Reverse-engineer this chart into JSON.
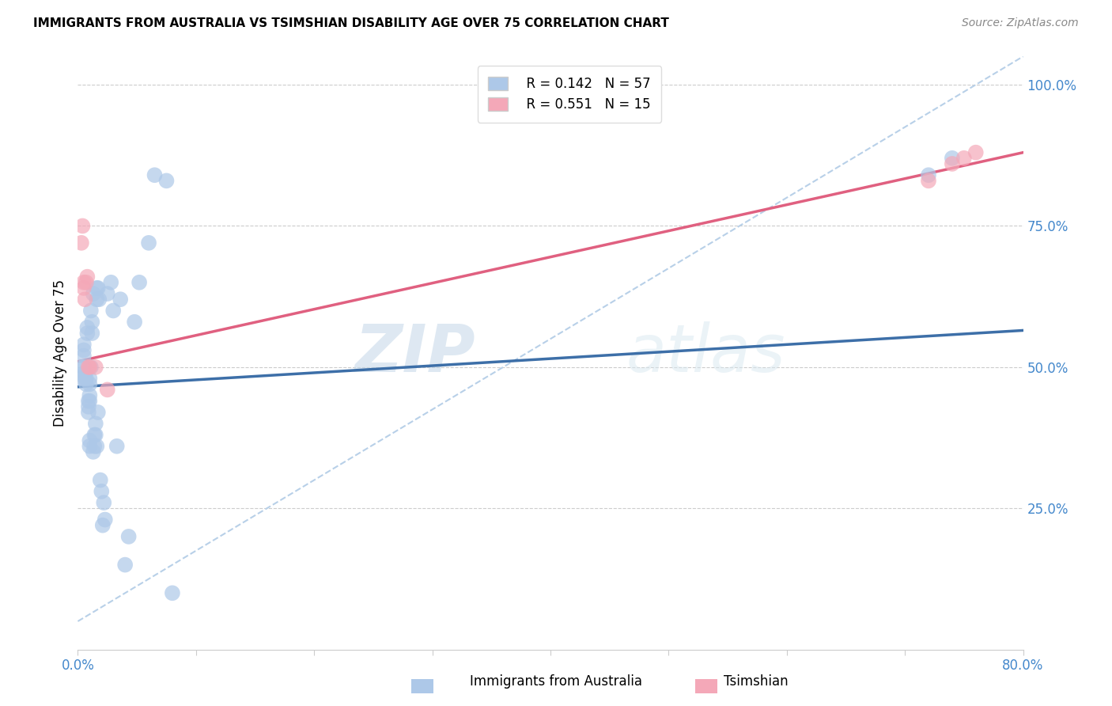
{
  "title": "IMMIGRANTS FROM AUSTRALIA VS TSIMSHIAN DISABILITY AGE OVER 75 CORRELATION CHART",
  "source": "Source: ZipAtlas.com",
  "ylabel": "Disability Age Over 75",
  "xlim": [
    0.0,
    0.8
  ],
  "ylim": [
    0.0,
    1.05
  ],
  "ytick_positions": [
    0.25,
    0.5,
    0.75,
    1.0
  ],
  "ytick_labels": [
    "25.0%",
    "50.0%",
    "75.0%",
    "100.0%"
  ],
  "legend_r1": "R = 0.142",
  "legend_n1": "N = 57",
  "legend_r2": "R = 0.551",
  "legend_n2": "N = 15",
  "color_australia": "#adc8e8",
  "color_tsimshian": "#f4a8b8",
  "line_color_australia": "#3d6fa8",
  "line_color_tsimshian": "#e06080",
  "dashed_line_color": "#b8d0e8",
  "watermark_zip": "ZIP",
  "watermark_atlas": "atlas",
  "australia_scatter_x": [
    0.003,
    0.004,
    0.005,
    0.005,
    0.005,
    0.005,
    0.006,
    0.006,
    0.007,
    0.007,
    0.008,
    0.008,
    0.009,
    0.009,
    0.009,
    0.01,
    0.01,
    0.01,
    0.01,
    0.01,
    0.01,
    0.011,
    0.011,
    0.012,
    0.012,
    0.013,
    0.013,
    0.014,
    0.014,
    0.015,
    0.015,
    0.016,
    0.016,
    0.016,
    0.017,
    0.017,
    0.018,
    0.019,
    0.02,
    0.021,
    0.022,
    0.023,
    0.025,
    0.028,
    0.03,
    0.033,
    0.036,
    0.04,
    0.043,
    0.048,
    0.052,
    0.06,
    0.065,
    0.075,
    0.08,
    0.72,
    0.74
  ],
  "australia_scatter_y": [
    0.48,
    0.5,
    0.5,
    0.52,
    0.53,
    0.54,
    0.48,
    0.49,
    0.47,
    0.48,
    0.56,
    0.57,
    0.42,
    0.43,
    0.44,
    0.36,
    0.37,
    0.44,
    0.45,
    0.47,
    0.48,
    0.5,
    0.6,
    0.56,
    0.58,
    0.63,
    0.35,
    0.36,
    0.38,
    0.4,
    0.38,
    0.36,
    0.62,
    0.64,
    0.42,
    0.64,
    0.62,
    0.3,
    0.28,
    0.22,
    0.26,
    0.23,
    0.63,
    0.65,
    0.6,
    0.36,
    0.62,
    0.15,
    0.2,
    0.58,
    0.65,
    0.72,
    0.84,
    0.83,
    0.1,
    0.84,
    0.87
  ],
  "tsimshian_scatter_x": [
    0.003,
    0.004,
    0.005,
    0.005,
    0.006,
    0.007,
    0.008,
    0.009,
    0.01,
    0.015,
    0.025,
    0.72,
    0.74,
    0.75,
    0.76
  ],
  "tsimshian_scatter_y": [
    0.72,
    0.75,
    0.64,
    0.65,
    0.62,
    0.65,
    0.66,
    0.5,
    0.5,
    0.5,
    0.46,
    0.83,
    0.86,
    0.87,
    0.88
  ],
  "australia_trend_x": [
    0.0,
    0.8
  ],
  "australia_trend_y": [
    0.465,
    0.565
  ],
  "tsimshian_trend_x": [
    0.0,
    0.8
  ],
  "tsimshian_trend_y": [
    0.51,
    0.88
  ],
  "dashed_trend_x": [
    0.0,
    0.8
  ],
  "dashed_trend_y": [
    0.05,
    1.05
  ]
}
